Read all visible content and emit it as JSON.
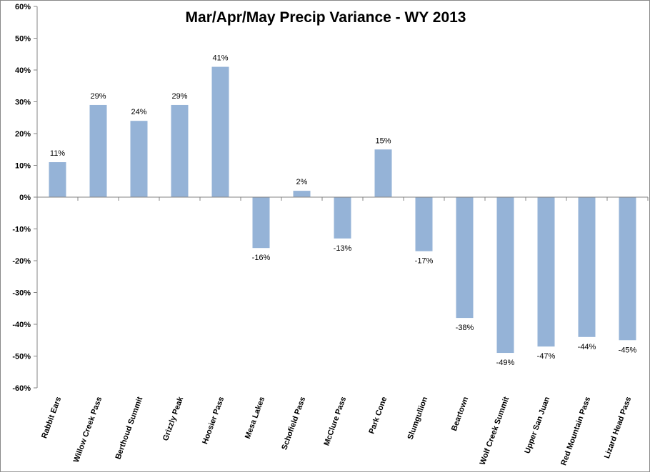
{
  "chart_data": {
    "type": "bar",
    "title": "Mar/Apr/May Precip Variance - WY 2013",
    "xlabel": "",
    "ylabel": "",
    "categories": [
      "Rabbit Ears",
      "Willow Creek Pass",
      "Berthoud Summit",
      "Grizzly Peak",
      "Hoosier Pass",
      "Mesa Lakes",
      "Schofield Pass",
      "McClure Pass",
      "Park Cone",
      "Slumgullion",
      "Beartown",
      "Wolf Creek Summit",
      "Upper San Juan",
      "Red Mountain Pass",
      "Lizard Head Pass"
    ],
    "values": [
      11,
      29,
      24,
      29,
      41,
      -16,
      2,
      -13,
      15,
      -17,
      -38,
      -49,
      -47,
      -44,
      -45
    ],
    "data_labels": [
      "11%",
      "29%",
      "24%",
      "29%",
      "41%",
      "-16%",
      "2%",
      "-13%",
      "15%",
      "-17%",
      "-38%",
      "-49%",
      "-47%",
      "-44%",
      "-45%"
    ],
    "ylim": [
      -60,
      60
    ],
    "yticks": [
      60,
      50,
      40,
      30,
      20,
      10,
      0,
      -10,
      -20,
      -30,
      -40,
      -50,
      -60
    ],
    "ytick_labels": [
      "60%",
      "50%",
      "40%",
      "30%",
      "20%",
      "10%",
      "0%",
      "-10%",
      "-20%",
      "-30%",
      "-40%",
      "-50%",
      "-60%"
    ],
    "grid": false,
    "legend": "none",
    "bar_color": "#95b3d7",
    "axis_color": "#868686"
  }
}
